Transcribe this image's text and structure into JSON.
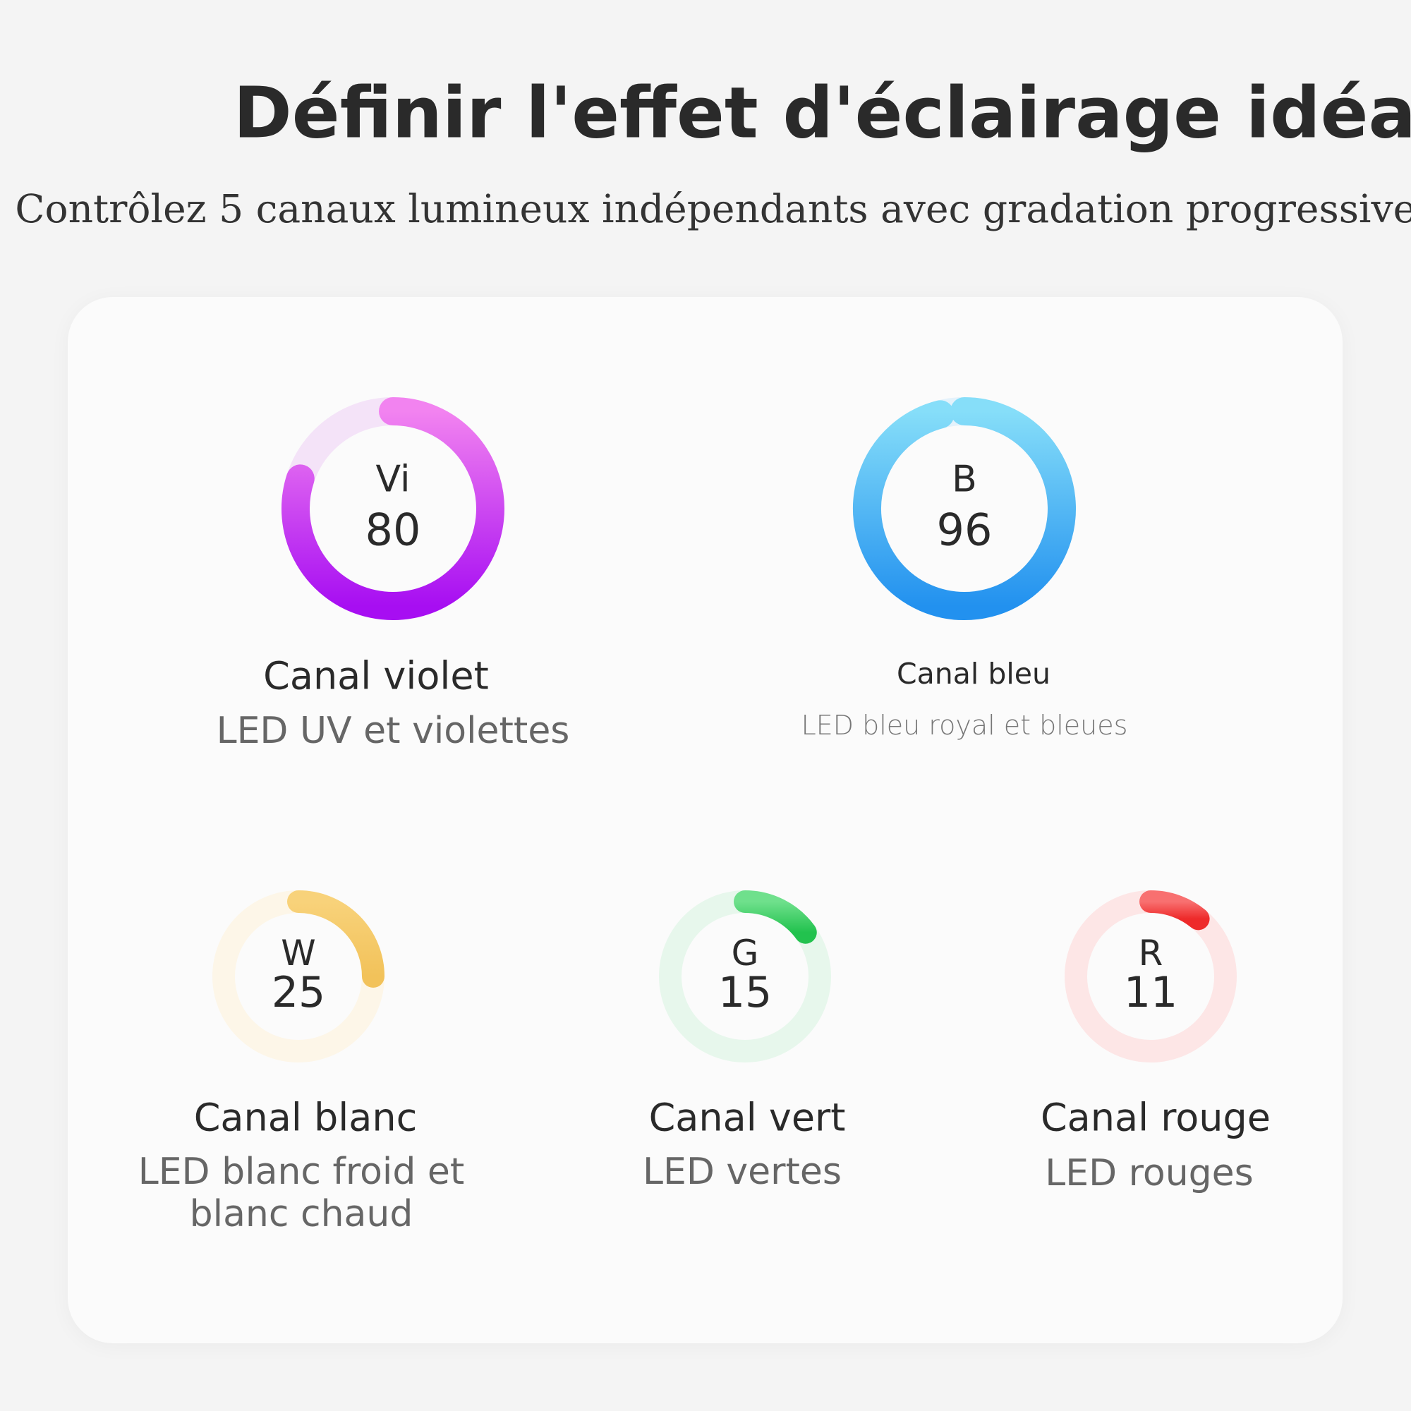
{
  "header": {
    "title": "Définir l'effet d'éclairage idéal",
    "subtitle": "Contrôlez 5 canaux lumineux indépendants avec gradation progressive."
  },
  "range": [
    0,
    100
  ],
  "channels": [
    {
      "code": "Vi",
      "value": 80,
      "name": "Canal violet",
      "desc": "LED UV et violettes",
      "colors": [
        "#f283f0",
        "#a70ef2"
      ],
      "track": "#f4e3f8"
    },
    {
      "code": "B",
      "value": 96,
      "name": "Canal bleu",
      "desc": "LED bleu royal et bleues",
      "colors": [
        "#86def9",
        "#2291ef"
      ],
      "track": "#e4f2fb"
    },
    {
      "code": "W",
      "value": 25,
      "name": "Canal blanc",
      "desc": "LED blanc froid et blanc chaud",
      "colors": [
        "#f8d27a",
        "#f2c25a"
      ],
      "track": "#fdf6e8"
    },
    {
      "code": "G",
      "value": 15,
      "name": "Canal vert",
      "desc": "LED vertes",
      "colors": [
        "#6fe08c",
        "#22c24e"
      ],
      "track": "#e7f7ec"
    },
    {
      "code": "R",
      "value": 11,
      "name": "Canal rouge",
      "desc": "LED rouges",
      "colors": [
        "#f87070",
        "#ee2a2a"
      ],
      "track": "#fde6e6"
    }
  ]
}
